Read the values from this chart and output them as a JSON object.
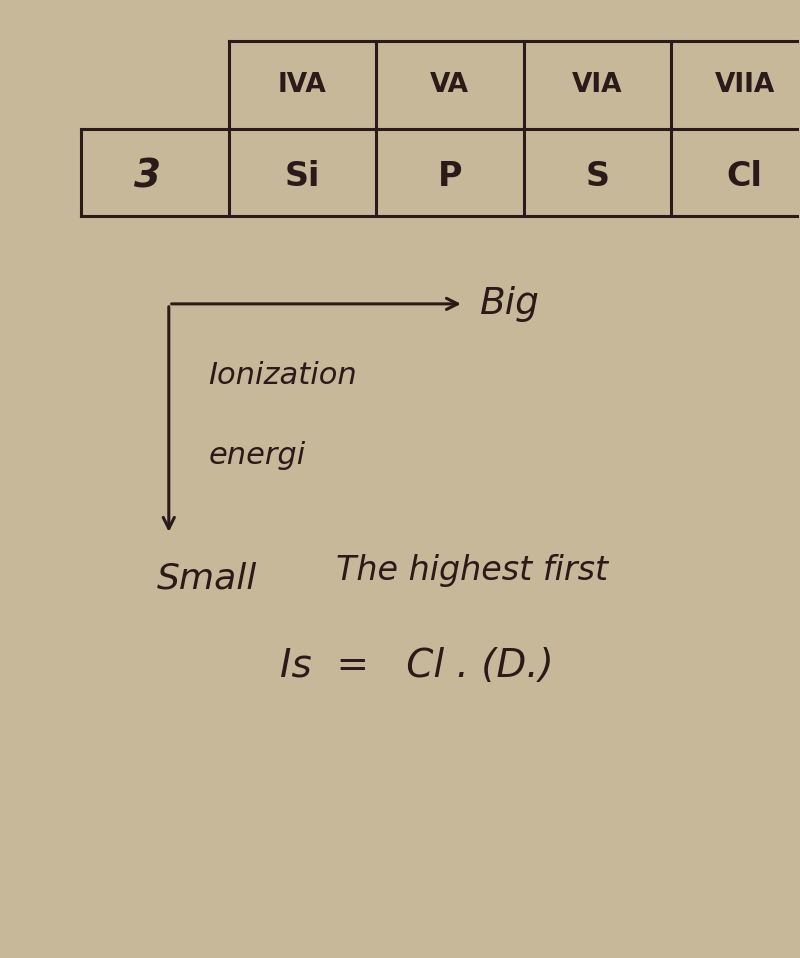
{
  "bg_color": "#c8b89a",
  "paper_color": "#f2f0ee",
  "ink_color": "#2a1a1a",
  "col_headers": [
    "IVA",
    "VA",
    "VIA",
    "VIIA"
  ],
  "row_label": "3",
  "elements": [
    "Si",
    "P",
    "S",
    "Cl"
  ],
  "arrow_right_label": "Big",
  "arrow_down_label1": "Ionization",
  "arrow_down_label2": "energi",
  "small_label": "Small",
  "conclusion_line1": "The highest first",
  "conclusion_line2": "Is  =   Cl . (D.)"
}
